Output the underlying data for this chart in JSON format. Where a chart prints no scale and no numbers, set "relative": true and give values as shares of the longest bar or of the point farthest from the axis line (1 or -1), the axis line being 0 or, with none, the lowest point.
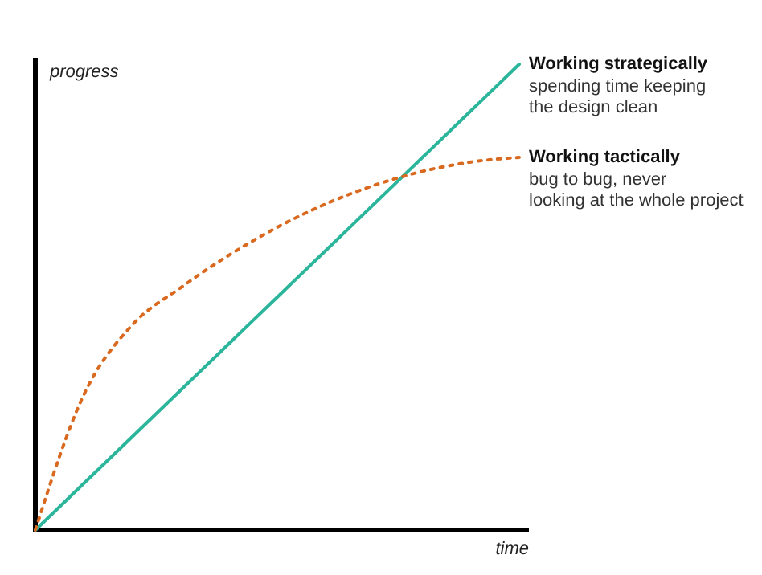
{
  "chart_data": {
    "type": "line",
    "relative": true,
    "xlabel": "time",
    "ylabel": "progress",
    "categories": [
      null,
      null,
      null,
      null,
      null,
      null,
      null,
      null,
      null,
      null,
      null
    ],
    "series": [
      {
        "name": "Working strategically",
        "color": "#2bb59a",
        "line_style": "solid",
        "values": [
          0,
          0.1,
          0.2,
          0.3,
          0.4,
          0.5,
          0.6,
          0.7,
          0.8,
          0.9,
          1
        ]
      },
      {
        "name": "Working tactically",
        "color": "#d9691f",
        "line_style": "dotted",
        "values": [
          0,
          0.29,
          0.44,
          0.52,
          0.59,
          0.65,
          0.7,
          0.74,
          0.77,
          0.79,
          0.8
        ]
      }
    ],
    "annotations": [
      "spending time keeping",
      "the design clean",
      "bug to bug, never",
      "looking at the whole project"
    ],
    "grid": false
  }
}
